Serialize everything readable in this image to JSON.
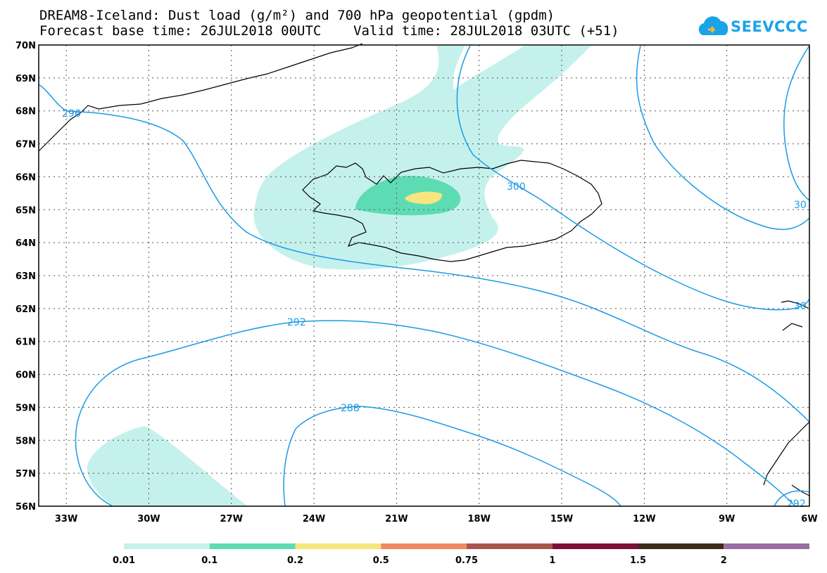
{
  "header": {
    "title": "DREAM8-Iceland: Dust load (g/m²) and 700 hPa geopotential (gpdm)",
    "subtitle": "Forecast base time: 26JUL2018 00UTC    Valid time: 28JUL2018 03UTC (+51)"
  },
  "logo": {
    "text": "SEEVCCC",
    "icon": "cloud-icon"
  },
  "map": {
    "lon_range": [
      -34,
      -6
    ],
    "lat_range": [
      56,
      70
    ],
    "lon_ticks": [
      "33W",
      "30W",
      "27W",
      "24W",
      "21W",
      "18W",
      "15W",
      "12W",
      "9W",
      "6W"
    ],
    "lat_ticks": [
      "56N",
      "57N",
      "58N",
      "59N",
      "60N",
      "61N",
      "62N",
      "63N",
      "64N",
      "65N",
      "66N",
      "67N",
      "68N",
      "69N",
      "70N"
    ],
    "contour_color": "#1a9be6",
    "contour_labels": [
      "296",
      "300",
      "292",
      "288",
      "30",
      "30",
      "292"
    ]
  },
  "colorbar": {
    "colors": [
      "#c5f1ec",
      "#5ddcb4",
      "#f7e67d",
      "#f08a60",
      "#a8564c",
      "#7f0f37",
      "#3d2a18",
      "#9b6ea3"
    ],
    "labels": [
      "0.01",
      "0.1",
      "0.2",
      "0.5",
      "0.75",
      "1",
      "1.5",
      "2"
    ]
  }
}
